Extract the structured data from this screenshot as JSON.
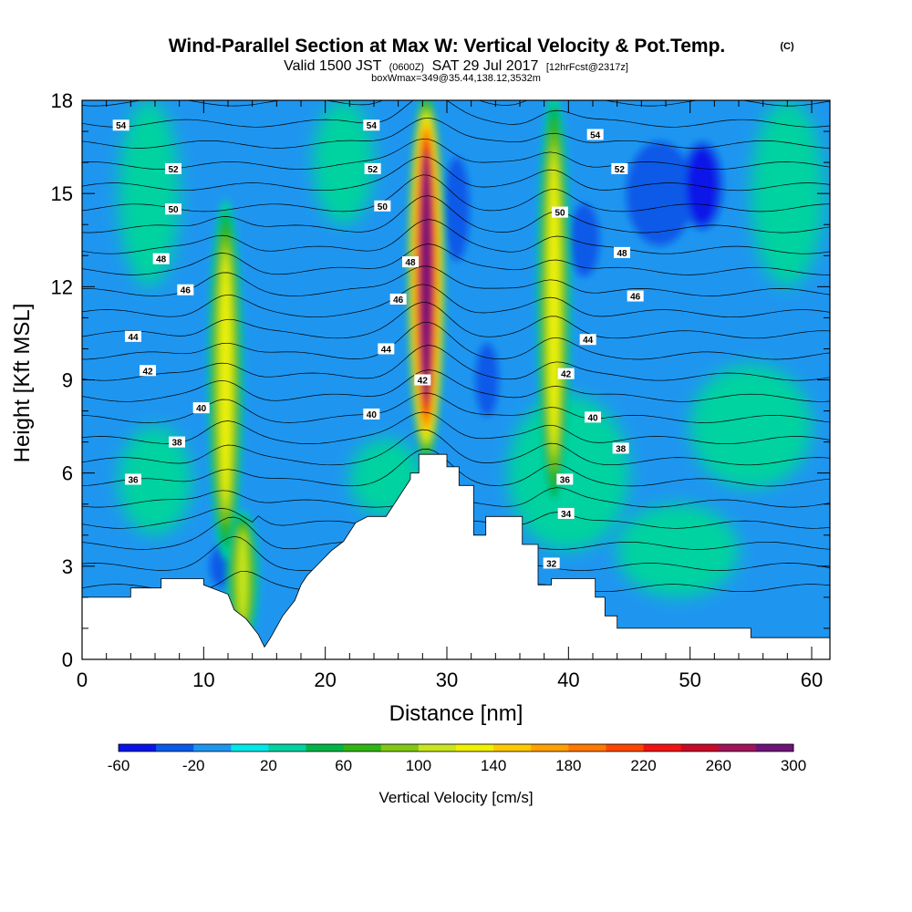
{
  "chart_data": {
    "type": "heatmap",
    "title": "Wind-Parallel Section at Max W: Vertical Velocity & Pot.Temp.",
    "title_mark": "(C)",
    "subtitle": {
      "valid": "Valid 1500 JST",
      "zulu": "(0600Z)",
      "date": "SAT 29 Jul 2017",
      "forecast": "[12hrFcst@2317z]"
    },
    "box_note": "boxWmax=349@35.44,138.12,3532m",
    "xlabel": "Distance [nm]",
    "ylabel": "Height [Kft MSL]",
    "xlim": [
      0,
      61.5
    ],
    "ylim": [
      0,
      18
    ],
    "x_ticks": [
      0,
      10,
      20,
      30,
      40,
      50,
      60
    ],
    "y_ticks": [
      0,
      3,
      6,
      9,
      12,
      15,
      18
    ],
    "colorbar": {
      "label": "Vertical Velocity [cm/s]",
      "ticks": [
        "-60",
        "-20",
        "20",
        "60",
        "100",
        "140",
        "180",
        "220",
        "260",
        "300"
      ],
      "levels": [
        -60,
        -40,
        -20,
        0,
        20,
        40,
        60,
        80,
        100,
        120,
        140,
        160,
        180,
        200,
        220,
        240,
        260,
        280,
        300
      ],
      "colors": [
        "#0a14e8",
        "#0a5ae8",
        "#1e96f0",
        "#00e8e8",
        "#00d2a0",
        "#00b448",
        "#32b414",
        "#82c814",
        "#c8e61e",
        "#f0f000",
        "#ffc800",
        "#ffa000",
        "#ff7800",
        "#ff4600",
        "#f01414",
        "#c80a28",
        "#a0145a",
        "#6e1478"
      ],
      "background_color": "#1e96f0"
    },
    "terrain": {
      "x": [
        0,
        4,
        4,
        6.5,
        6.5,
        10,
        10,
        12,
        12.5,
        13.5,
        14.5,
        15,
        15.5,
        16.5,
        17.5,
        18,
        18.5,
        19.5,
        20.5,
        21.5,
        22,
        22.5,
        23.5,
        25,
        25,
        27,
        27,
        27.7,
        27.7,
        30,
        30,
        31,
        31,
        32.2,
        32.2,
        33.2,
        33.2,
        36.2,
        36.2,
        37.5,
        37.5,
        38.6,
        38.6,
        42.2,
        42.2,
        43,
        43,
        44,
        44,
        55,
        55,
        61.5
      ],
      "y": [
        2.0,
        2.0,
        2.3,
        2.3,
        2.6,
        2.6,
        2.4,
        2.1,
        1.6,
        1.3,
        0.8,
        0.4,
        0.7,
        1.4,
        1.9,
        2.4,
        2.7,
        3.1,
        3.5,
        3.8,
        4.1,
        4.4,
        4.6,
        4.6,
        4.6,
        5.8,
        6.0,
        6.0,
        6.6,
        6.6,
        6.2,
        6.2,
        5.6,
        5.6,
        4.0,
        4.0,
        4.6,
        4.6,
        3.7,
        3.7,
        2.4,
        2.4,
        2.6,
        2.6,
        2.0,
        2.0,
        1.4,
        1.4,
        1.0,
        1.0,
        0.7,
        0.7
      ]
    },
    "updrafts": [
      {
        "x": 11.8,
        "y_top": 14.5,
        "y_bottom": 3.5,
        "width": 1.4,
        "peak": 130
      },
      {
        "x": 13.2,
        "y_top": 4.5,
        "y_bottom": 0.8,
        "width": 1.2,
        "peak": 110
      },
      {
        "x": 28.3,
        "y_top": 18.0,
        "y_bottom": 6.6,
        "width": 1.7,
        "peak": 300
      },
      {
        "x": 38.8,
        "y_top": 18.0,
        "y_bottom": 5.0,
        "width": 1.3,
        "peak": 120
      }
    ],
    "downdrafts": [
      {
        "x": 11.5,
        "y_top": 3.5,
        "y_bottom": 2.5,
        "width": 0.5,
        "peak": -40
      },
      {
        "x": 30.8,
        "y_top": 16.0,
        "y_bottom": 13.0,
        "width": 0.6,
        "peak": -40
      },
      {
        "x": 33.3,
        "y_top": 10.0,
        "y_bottom": 8.0,
        "width": 0.4,
        "peak": -40
      },
      {
        "x": 41.3,
        "y_top": 14.5,
        "y_bottom": 12.5,
        "width": 1.0,
        "peak": -40
      },
      {
        "x": 47.5,
        "y_top": 16.5,
        "y_bottom": 13.5,
        "width": 4.0,
        "peak": -40
      },
      {
        "x": 51.0,
        "y_top": 16.5,
        "y_bottom": 14.0,
        "width": 2.0,
        "peak": -45
      }
    ],
    "weak_regions": [
      {
        "x": 3.0,
        "y": 4.0,
        "w": 6.0,
        "h": 3.5,
        "value": 20
      },
      {
        "x": 22.0,
        "y": 4.6,
        "w": 6.0,
        "h": 2.5,
        "value": 20
      },
      {
        "x": 35.0,
        "y": 3.5,
        "w": 10.0,
        "h": 5.0,
        "value": 20
      },
      {
        "x": 44.0,
        "y": 2.0,
        "w": 10.0,
        "h": 3.0,
        "value": 20
      },
      {
        "x": 50.0,
        "y": 5.5,
        "w": 10.0,
        "h": 4.0,
        "value": 20
      },
      {
        "x": 3.0,
        "y": 12.0,
        "w": 5.0,
        "h": 6.0,
        "value": 20
      },
      {
        "x": 19.0,
        "y": 14.0,
        "w": 5.0,
        "h": 4.0,
        "value": 20
      },
      {
        "x": 55.0,
        "y": 12.0,
        "w": 6.0,
        "h": 6.0,
        "value": 20
      }
    ],
    "pot_temp_contours": {
      "levels_start": 31,
      "levels_end": 55,
      "base_height": 2.3,
      "spacing": 0.68,
      "labels": [
        {
          "text": "54",
          "x": 3.2,
          "y": 17.2
        },
        {
          "text": "52",
          "x": 7.5,
          "y": 15.8
        },
        {
          "text": "50",
          "x": 7.5,
          "y": 14.5
        },
        {
          "text": "48",
          "x": 6.5,
          "y": 12.9
        },
        {
          "text": "46",
          "x": 8.5,
          "y": 11.9
        },
        {
          "text": "44",
          "x": 4.2,
          "y": 10.4
        },
        {
          "text": "42",
          "x": 5.4,
          "y": 9.3
        },
        {
          "text": "40",
          "x": 9.8,
          "y": 8.1
        },
        {
          "text": "38",
          "x": 7.8,
          "y": 7.0
        },
        {
          "text": "36",
          "x": 4.2,
          "y": 5.8
        },
        {
          "text": "54",
          "x": 23.8,
          "y": 17.2
        },
        {
          "text": "52",
          "x": 23.9,
          "y": 15.8
        },
        {
          "text": "50",
          "x": 24.7,
          "y": 14.6
        },
        {
          "text": "48",
          "x": 27.0,
          "y": 12.8
        },
        {
          "text": "46",
          "x": 26.0,
          "y": 11.6
        },
        {
          "text": "44",
          "x": 25.0,
          "y": 10.0
        },
        {
          "text": "42",
          "x": 28.0,
          "y": 9.0
        },
        {
          "text": "40",
          "x": 23.8,
          "y": 7.9
        },
        {
          "text": "54",
          "x": 42.2,
          "y": 16.9
        },
        {
          "text": "52",
          "x": 44.2,
          "y": 15.8
        },
        {
          "text": "50",
          "x": 39.3,
          "y": 14.4
        },
        {
          "text": "48",
          "x": 44.4,
          "y": 13.1
        },
        {
          "text": "46",
          "x": 45.5,
          "y": 11.7
        },
        {
          "text": "44",
          "x": 41.6,
          "y": 10.3
        },
        {
          "text": "42",
          "x": 39.8,
          "y": 9.2
        },
        {
          "text": "40",
          "x": 42.0,
          "y": 7.8
        },
        {
          "text": "38",
          "x": 44.3,
          "y": 6.8
        },
        {
          "text": "36",
          "x": 39.7,
          "y": 5.8
        },
        {
          "text": "34",
          "x": 39.8,
          "y": 4.7
        },
        {
          "text": "32",
          "x": 38.6,
          "y": 3.1
        }
      ]
    }
  }
}
